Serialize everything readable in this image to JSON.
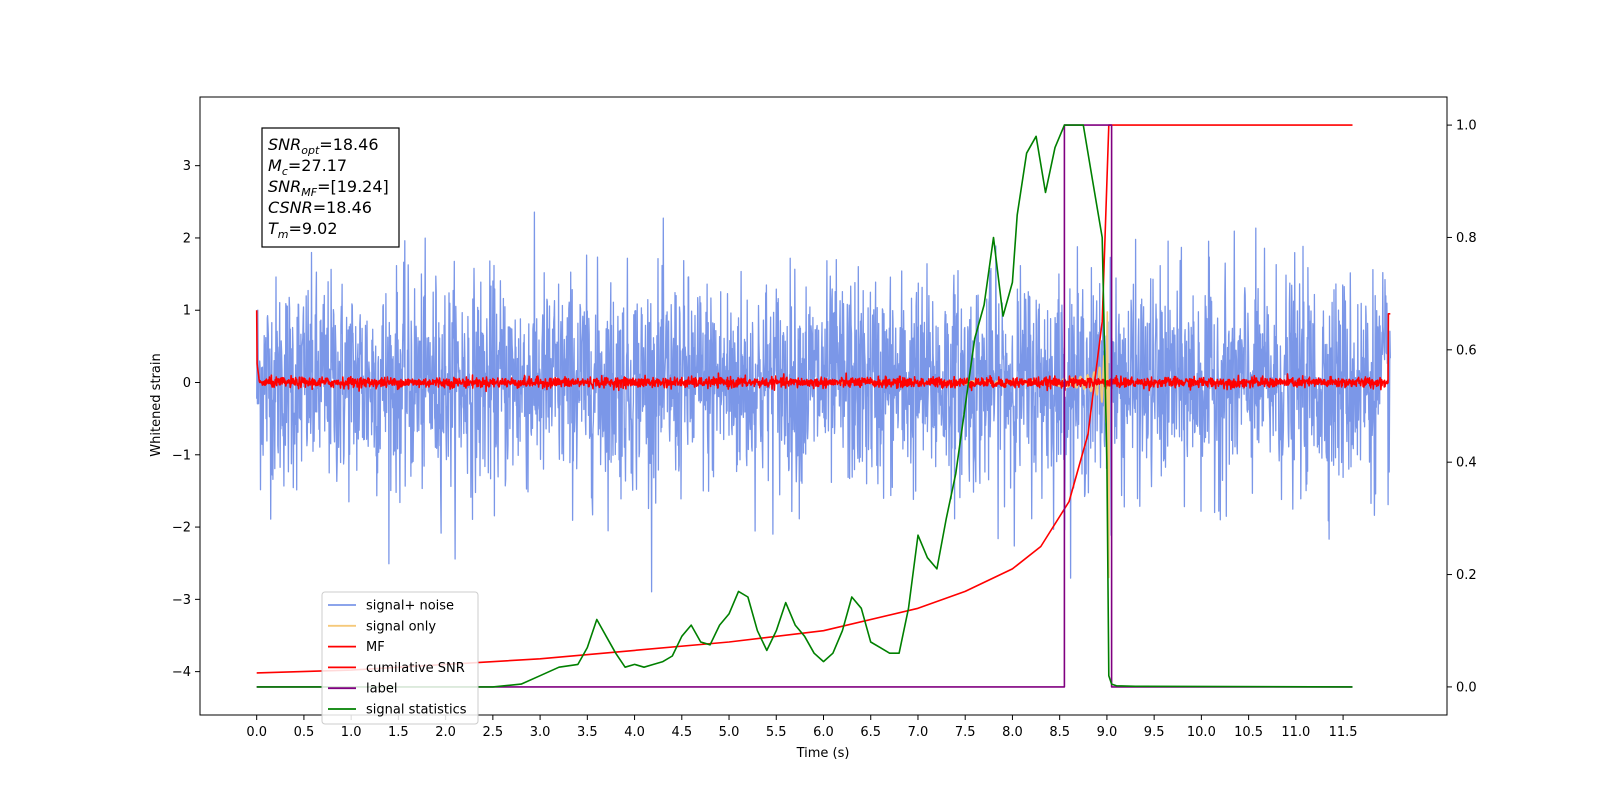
{
  "chart_data": {
    "type": "line",
    "xlabel": "Time (s)",
    "ylabel": "Whitened strain",
    "xlim": [
      -0.6,
      12.6
    ],
    "ylim": [
      -4.6,
      3.95
    ],
    "y2lim": [
      -0.05,
      1.05
    ],
    "x_ticks": [
      "0.0",
      "0.5",
      "1.0",
      "1.5",
      "2.0",
      "2.5",
      "3.0",
      "3.5",
      "4.0",
      "4.5",
      "5.0",
      "5.5",
      "6.0",
      "6.5",
      "7.0",
      "7.5",
      "8.0",
      "8.5",
      "9.0",
      "9.5",
      "10.0",
      "10.5",
      "11.0",
      "11.5"
    ],
    "y_ticks": [
      "3",
      "2",
      "1",
      "0",
      "-1",
      "-2",
      "-3",
      "-4"
    ],
    "y2_ticks": [
      "1.0",
      "0.8",
      "0.6",
      "0.4",
      "0.2",
      "0.0"
    ],
    "info_box": [
      {
        "base": "SNR",
        "sub": "opt",
        "value": "=18.46"
      },
      {
        "base": "M",
        "sub": "c",
        "value": "=27.17"
      },
      {
        "base": "SNR",
        "sub": "MF",
        "value": "=[19.24]"
      },
      {
        "base": "CSNR",
        "sub": "",
        "value": "=18.46"
      },
      {
        "base": "T",
        "sub": "m",
        "value": "=9.02"
      }
    ],
    "legend_position": "lower left",
    "series": [
      {
        "name": "signal+ noise",
        "color": "#7b97e8",
        "axis": "left",
        "kind": "noise",
        "amplitude": 1.0,
        "x_range": [
          0.0,
          12.0
        ]
      },
      {
        "name": "signal only",
        "color": "#f5c97a",
        "axis": "left",
        "kind": "chirp",
        "merger_time": 9.02
      },
      {
        "name": "MF",
        "color": "#ff0000",
        "axis": "left",
        "kind": "noise",
        "amplitude": 0.05,
        "x_range": [
          0.0,
          12.0
        ]
      },
      {
        "name": "cumilative SNR",
        "color": "#ff0000",
        "axis": "right",
        "x": [
          0.0,
          1.0,
          2.0,
          3.0,
          4.0,
          5.0,
          6.0,
          7.0,
          7.5,
          8.0,
          8.3,
          8.6,
          8.8,
          8.95,
          9.02,
          9.05,
          11.6
        ],
        "y": [
          0.025,
          0.03,
          0.04,
          0.05,
          0.065,
          0.08,
          0.1,
          0.14,
          0.17,
          0.21,
          0.25,
          0.33,
          0.45,
          0.65,
          1.0,
          1.0,
          1.0
        ]
      },
      {
        "name": "label",
        "color": "#800080",
        "axis": "right",
        "x": [
          0.0,
          8.55,
          8.55,
          9.05,
          9.05,
          11.6
        ],
        "y": [
          0.0,
          0.0,
          1.0,
          1.0,
          0.0,
          0.0
        ]
      },
      {
        "name": "signal statistics",
        "color": "#008000",
        "axis": "right",
        "x": [
          0.0,
          2.5,
          2.8,
          3.0,
          3.2,
          3.4,
          3.5,
          3.6,
          3.7,
          3.8,
          3.9,
          4.0,
          4.1,
          4.2,
          4.3,
          4.4,
          4.5,
          4.6,
          4.7,
          4.8,
          4.9,
          5.0,
          5.1,
          5.2,
          5.3,
          5.4,
          5.5,
          5.6,
          5.7,
          5.8,
          5.9,
          6.0,
          6.1,
          6.2,
          6.3,
          6.4,
          6.5,
          6.6,
          6.7,
          6.8,
          6.9,
          7.0,
          7.1,
          7.2,
          7.3,
          7.4,
          7.5,
          7.6,
          7.7,
          7.8,
          7.9,
          8.0,
          8.05,
          8.15,
          8.25,
          8.35,
          8.45,
          8.55,
          8.65,
          8.75,
          8.85,
          8.95,
          9.0,
          9.02,
          9.05,
          9.1,
          9.3,
          11.6
        ],
        "y": [
          0.0,
          0.0,
          0.005,
          0.02,
          0.035,
          0.04,
          0.07,
          0.12,
          0.09,
          0.06,
          0.035,
          0.04,
          0.035,
          0.04,
          0.045,
          0.055,
          0.09,
          0.11,
          0.08,
          0.075,
          0.11,
          0.13,
          0.17,
          0.16,
          0.1,
          0.065,
          0.1,
          0.15,
          0.11,
          0.09,
          0.06,
          0.045,
          0.06,
          0.1,
          0.16,
          0.14,
          0.08,
          0.07,
          0.06,
          0.06,
          0.14,
          0.27,
          0.23,
          0.21,
          0.3,
          0.38,
          0.5,
          0.62,
          0.68,
          0.8,
          0.66,
          0.72,
          0.84,
          0.95,
          0.98,
          0.88,
          0.96,
          1.0,
          1.0,
          1.0,
          0.9,
          0.8,
          0.4,
          0.02,
          0.005,
          0.002,
          0.001,
          0.0
        ]
      }
    ]
  }
}
